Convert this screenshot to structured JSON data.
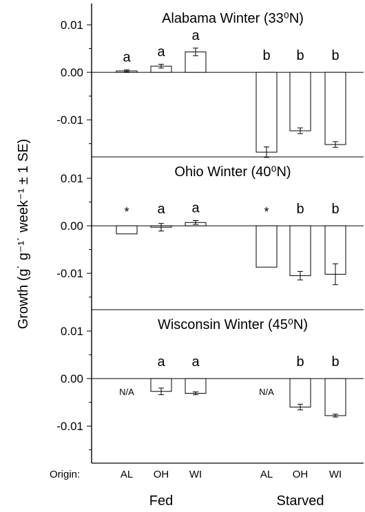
{
  "chart_data": {
    "type": "bar",
    "ylabel": "Growth (g˙ g⁻¹˙ week⁻¹ ± 1 SE)",
    "origin_label": "Origin:",
    "categories": [
      "AL",
      "OH",
      "WI",
      "AL",
      "OH",
      "WI"
    ],
    "groups": [
      {
        "label": "Fed",
        "categories": [
          "AL",
          "OH",
          "WI"
        ]
      },
      {
        "label": "Starved",
        "categories": [
          "AL",
          "OH",
          "WI"
        ]
      }
    ],
    "yticks": [
      "0.01",
      "0.00",
      "-0.01"
    ],
    "panels": [
      {
        "title": "Alabama Winter (33⁰N)",
        "ylim": [
          -0.0178,
          0.0145
        ],
        "values": [
          0.0003,
          0.0013,
          0.0043,
          -0.0168,
          -0.0123,
          -0.0152
        ],
        "errors": [
          0.0002,
          0.0004,
          0.0008,
          0.0011,
          0.0006,
          0.0006
        ],
        "labels": [
          "a",
          "a",
          "a",
          "b",
          "b",
          "b"
        ]
      },
      {
        "title": "Ohio Winter (40⁰N)",
        "ylim": [
          -0.0178,
          0.0145
        ],
        "values": [
          -0.0017,
          -0.0003,
          0.0007,
          -0.0087,
          -0.0105,
          -0.0102
        ],
        "errors": [
          0.0,
          0.0008,
          0.0004,
          0.0,
          0.0009,
          0.0022
        ],
        "labels": [
          "*",
          "a",
          "a",
          "*",
          "b",
          "b"
        ]
      },
      {
        "title": "Wisconsin Winter (45⁰N)",
        "ylim": [
          -0.0178,
          0.0145
        ],
        "values": [
          null,
          -0.0027,
          -0.0031,
          null,
          -0.006,
          -0.0078
        ],
        "errors": [
          null,
          0.0007,
          0.0003,
          null,
          0.0006,
          0.0003
        ],
        "labels": [
          "N/A",
          "a",
          "a",
          "N/A",
          "b",
          "b"
        ]
      }
    ]
  }
}
